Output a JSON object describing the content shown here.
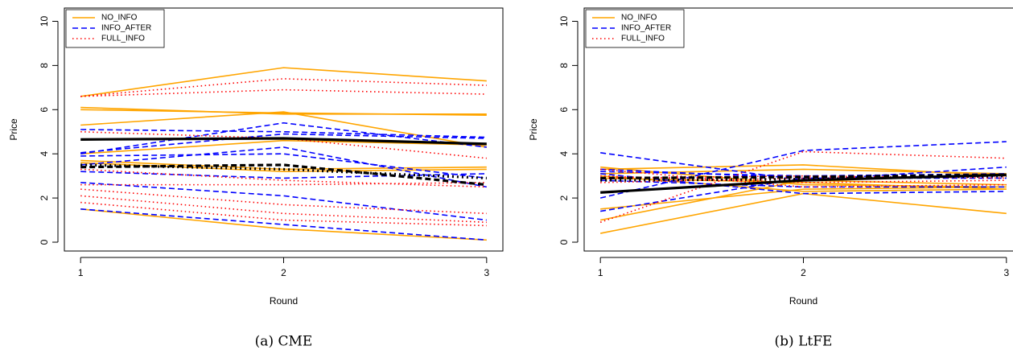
{
  "chart_data": [
    {
      "type": "line",
      "caption": "(a) CME",
      "x_label": "Round",
      "y_label": "Price",
      "x": [
        1,
        2,
        3
      ],
      "xlim": [
        0.92,
        3.08
      ],
      "ylim": [
        -0.4,
        10.6
      ],
      "xticks": [
        1,
        2,
        3
      ],
      "yticks": [
        0,
        2,
        4,
        6,
        8,
        10
      ],
      "mean_color": "#000000",
      "groups": [
        {
          "name": "NO_INFO",
          "color": "#ffa500",
          "dash": "solid",
          "mean": [
            4.65,
            4.7,
            4.45
          ],
          "lines": [
            [
              6.6,
              7.9,
              7.3
            ],
            [
              6.1,
              5.8,
              5.8
            ],
            [
              6.0,
              5.85,
              5.75
            ],
            [
              5.3,
              5.9,
              4.3
            ],
            [
              4.0,
              4.6,
              4.4
            ],
            [
              3.7,
              3.3,
              3.4
            ],
            [
              3.6,
              3.2,
              3.3
            ],
            [
              1.5,
              0.6,
              0.1
            ]
          ]
        },
        {
          "name": "INFO_AFTER",
          "color": "#0000ff",
          "dash": "dashed",
          "mean": [
            3.4,
            3.5,
            2.6
          ],
          "lines": [
            [
              5.1,
              5.0,
              4.75
            ],
            [
              4.0,
              5.4,
              4.3
            ],
            [
              3.9,
              4.0,
              2.9
            ],
            [
              3.5,
              4.3,
              2.5
            ],
            [
              3.2,
              2.9,
              3.1
            ],
            [
              2.7,
              2.1,
              1.0
            ],
            [
              1.5,
              0.8,
              0.1
            ],
            [
              4.05,
              4.9,
              4.7
            ]
          ]
        },
        {
          "name": "FULL_INFO",
          "color": "#ff0000",
          "dash": "dotted",
          "mean": [
            3.5,
            3.3,
            2.9
          ],
          "lines": [
            [
              6.6,
              7.4,
              7.1
            ],
            [
              6.6,
              6.9,
              6.7
            ],
            [
              5.0,
              4.7,
              3.8
            ],
            [
              3.3,
              2.8,
              2.5
            ],
            [
              2.4,
              1.7,
              1.3
            ],
            [
              2.1,
              1.3,
              0.9
            ],
            [
              1.8,
              1.0,
              0.75
            ],
            [
              2.6,
              2.6,
              2.7
            ]
          ]
        }
      ]
    },
    {
      "type": "line",
      "caption": "(b) LtFE",
      "x_label": "Round",
      "y_label": "Price",
      "x": [
        1,
        2,
        3
      ],
      "xlim": [
        0.92,
        3.08
      ],
      "ylim": [
        -0.4,
        10.6
      ],
      "xticks": [
        1,
        2,
        3
      ],
      "yticks": [
        0,
        2,
        4,
        6,
        8,
        10
      ],
      "mean_color": "#000000",
      "groups": [
        {
          "name": "NO_INFO",
          "color": "#ffa500",
          "dash": "solid",
          "mean": [
            2.25,
            2.8,
            3.05
          ],
          "lines": [
            [
              0.4,
              2.2,
              1.3
            ],
            [
              1.5,
              2.4,
              2.5
            ],
            [
              3.3,
              3.5,
              3.0
            ],
            [
              3.1,
              3.3,
              3.1
            ],
            [
              2.9,
              2.7,
              2.4
            ],
            [
              3.4,
              2.6,
              2.5
            ],
            [
              1.0,
              2.8,
              2.6
            ],
            [
              3.0,
              2.3,
              2.4
            ]
          ]
        },
        {
          "name": "INFO_AFTER",
          "color": "#0000ff",
          "dash": "dashed",
          "mean": [
            2.9,
            2.95,
            3.05
          ],
          "lines": [
            [
              4.05,
              2.8,
              3.4
            ],
            [
              2.0,
              4.15,
              4.55
            ],
            [
              1.4,
              2.9,
              2.9
            ],
            [
              3.1,
              2.2,
              2.3
            ],
            [
              3.2,
              3.0,
              3.1
            ],
            [
              2.8,
              2.5,
              2.5
            ],
            [
              3.3,
              2.9,
              3.0
            ]
          ]
        },
        {
          "name": "FULL_INFO",
          "color": "#ff0000",
          "dash": "dotted",
          "mean": [
            2.8,
            2.85,
            3.0
          ],
          "lines": [
            [
              0.9,
              4.1,
              3.8
            ],
            [
              2.9,
              3.0,
              2.9
            ],
            [
              3.3,
              2.5,
              2.6
            ],
            [
              3.0,
              2.7,
              2.8
            ],
            [
              2.7,
              2.9,
              3.0
            ]
          ]
        }
      ]
    }
  ]
}
